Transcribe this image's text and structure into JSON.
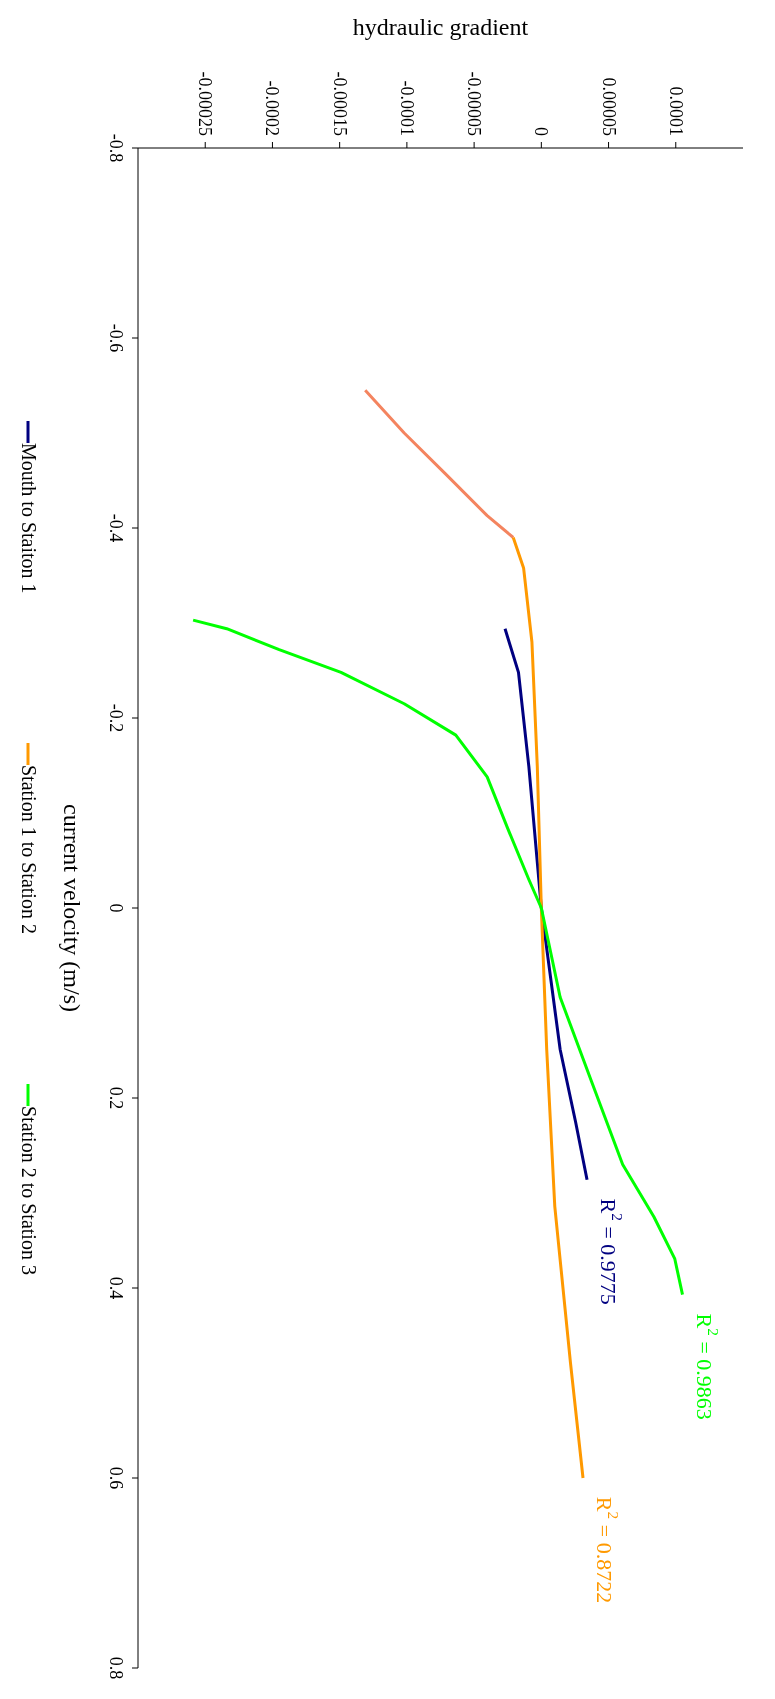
{
  "chart_data": {
    "type": "line",
    "xlabel": "hydraulic gradient",
    "ylabel": "current velocity (m/s)",
    "xlim": [
      -0.0003,
      0.00015
    ],
    "xticks": [
      -0.00025,
      -0.0002,
      -0.00015,
      -0.0001,
      {
        "value": -5e-05,
        "label": "-0.00005"
      },
      0,
      {
        "value": 5e-05,
        "label": "0.00005"
      },
      0.0001
    ],
    "ylim": [
      0.8,
      -0.8
    ],
    "yticks": [
      -0.8,
      -0.6,
      -0.4,
      -0.2,
      0,
      0.2,
      0.4,
      0.6,
      0.8
    ],
    "grid": false,
    "legend": "left",
    "marker": "none",
    "line_style": "solid",
    "series": [
      {
        "name": "Mouth to Staiton 1",
        "color": "#000080",
        "x": [
          -2.7e-05,
          -1.7e-05,
          -9.3e-06,
          0,
          1.4e-05,
          2.56e-05,
          3.4e-05
        ],
        "values": [
          -0.294,
          -0.248,
          -0.149,
          0,
          0.149,
          0.226,
          0.286
        ]
      },
      {
        "color": "#f4845f",
        "x": [
          -0.000131,
          -0.000102,
          -7.13e-05,
          -4.03e-05,
          -2.09e-05
        ],
        "values": [
          -0.545,
          -0.5,
          -0.457,
          -0.413,
          -0.39
        ]
      },
      {
        "name": "Station 1 to Station 2",
        "color": "#ff9900",
        "x": [
          -2.09e-05,
          -1.32e-05,
          -7e-06,
          -3e-06,
          0,
          4e-06,
          1e-05,
          2.17e-05,
          3.1e-05
        ],
        "values": [
          -0.39,
          -0.358,
          -0.28,
          -0.149,
          0,
          0.149,
          0.314,
          0.479,
          0.6
        ]
      },
      {
        "name": "Station 2 to Station 3",
        "color": "#00ff00",
        "x": [
          -0.000259,
          -0.000234,
          -0.000195,
          -0.000149,
          -0.000102,
          -6.36e-05,
          -4.03e-05,
          -2.48e-05,
          -9.3e-06,
          0,
          1.4e-05,
          3.72e-05,
          6.05e-05,
          8.37e-05,
          9.92e-05,
          0.000105
        ],
        "values": [
          -0.303,
          -0.294,
          -0.272,
          -0.248,
          -0.215,
          -0.182,
          -0.138,
          -0.083,
          -0.03,
          0,
          0.094,
          0.182,
          0.27,
          0.325,
          0.369,
          0.407
        ]
      }
    ],
    "annotations": [
      "R$^{2}$ = 0.9775",
      "R$^{2}$ = 0.8722",
      "R$^{2}$ = 0.9863"
    ]
  }
}
